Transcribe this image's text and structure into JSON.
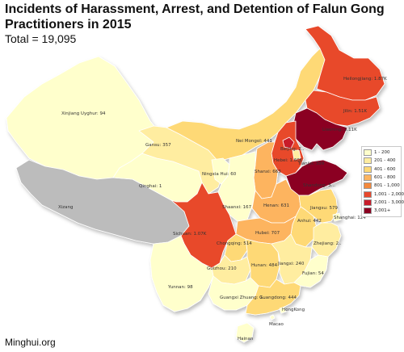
{
  "title": "Incidents of Harassment, Arrest, and Detention of Falun Gong Practitioners in 2015",
  "total": "Total = 19,095",
  "source": "Minghui.org",
  "colors": {
    "bin1": "#ffffcc",
    "bin2": "#ffeda0",
    "bin3": "#fed976",
    "bin4": "#fdb45f",
    "bin5": "#f4893c",
    "bin6": "#e8482c",
    "bin7": "#c81d2b",
    "bin8": "#8b0021",
    "nodata": "#bcbcbc"
  },
  "legend": [
    {
      "label": "1 - 200",
      "color": "#ffffcc"
    },
    {
      "label": "201 - 400",
      "color": "#ffeda0"
    },
    {
      "label": "401 - 600",
      "color": "#fed976"
    },
    {
      "label": "601 - 800",
      "color": "#fdb45f"
    },
    {
      "label": "801 - 1,000",
      "color": "#f4893c"
    },
    {
      "label": "1,001 - 2,000",
      "color": "#e8482c"
    },
    {
      "label": "2,001 - 3,000",
      "color": "#c81d2b"
    },
    {
      "label": "3,001+",
      "color": "#8b0021"
    }
  ],
  "provinces": [
    {
      "name": "Xinjiang Uyghur",
      "label": "Xinjiang Uyghur: 94",
      "value": 94
    },
    {
      "name": "Xizang",
      "label": "Xizang",
      "value": null
    },
    {
      "name": "Qinghai",
      "label": "Qinghai: 1",
      "value": 1
    },
    {
      "name": "Gansu",
      "label": "Gansu: 357",
      "value": 357
    },
    {
      "name": "Nei Mongol",
      "label": "Nei Mongol: 441",
      "value": 441
    },
    {
      "name": "Heilongjiang",
      "label": "Heilongjiang: 1.87K",
      "value": 1870
    },
    {
      "name": "Jilin",
      "label": "Jilin: 1.51K",
      "value": 1510
    },
    {
      "name": "Liaoning",
      "label": "Liaoning: 3.11K",
      "value": 3110
    },
    {
      "name": "Beijing",
      "label": "Beijing: 2..",
      "value": null
    },
    {
      "name": "Tianjin",
      "label": "Tianjin: 399",
      "value": 399
    },
    {
      "name": "Hebei",
      "label": "Hebei: 1.60K",
      "value": 1600
    },
    {
      "name": "Shandong",
      "label": "Shandong: 3...",
      "value": null
    },
    {
      "name": "Ningxia Hui",
      "label": "Ningxia Hui: 60",
      "value": 60
    },
    {
      "name": "Shanxi",
      "label": "Shanxi: 663",
      "value": 663
    },
    {
      "name": "Shaanxi",
      "label": "Shaanxi: 167",
      "value": 167
    },
    {
      "name": "Henan",
      "label": "Henan: 631",
      "value": 631
    },
    {
      "name": "Jiangsu",
      "label": "Jiangsu: 579",
      "value": 579
    },
    {
      "name": "Anhui",
      "label": "Anhui: 442",
      "value": 442
    },
    {
      "name": "Shanghai",
      "label": "Shanghai: 124",
      "value": 124
    },
    {
      "name": "Sichuan",
      "label": "Sichuan: 1.07K",
      "value": 1070
    },
    {
      "name": "Chongqing",
      "label": "Chongqing: 514",
      "value": 514
    },
    {
      "name": "Hubei",
      "label": "Hubei: 707",
      "value": 707
    },
    {
      "name": "Zhejiang",
      "label": "Zhejiang: 2..",
      "value": null
    },
    {
      "name": "Guizhou",
      "label": "Guizhou: 210",
      "value": 210
    },
    {
      "name": "Hunan",
      "label": "Hunan: 484",
      "value": 484
    },
    {
      "name": "Jiangxi",
      "label": "Jiangxi: 240",
      "value": 240
    },
    {
      "name": "Fujian",
      "label": "Fujian: 54",
      "value": 54
    },
    {
      "name": "Yunnan",
      "label": "Yunnan: 98",
      "value": 98
    },
    {
      "name": "Guangxi Zhuang",
      "label": "Guangxi Zhuang: 1..",
      "value": null
    },
    {
      "name": "Guangdong",
      "label": "Guangdong: 444",
      "value": 444
    },
    {
      "name": "Hong Kong",
      "label": "HongKong",
      "value": null
    },
    {
      "name": "Macao",
      "label": "Macao",
      "value": null
    },
    {
      "name": "Hainan",
      "label": "Hainan",
      "value": null
    }
  ]
}
